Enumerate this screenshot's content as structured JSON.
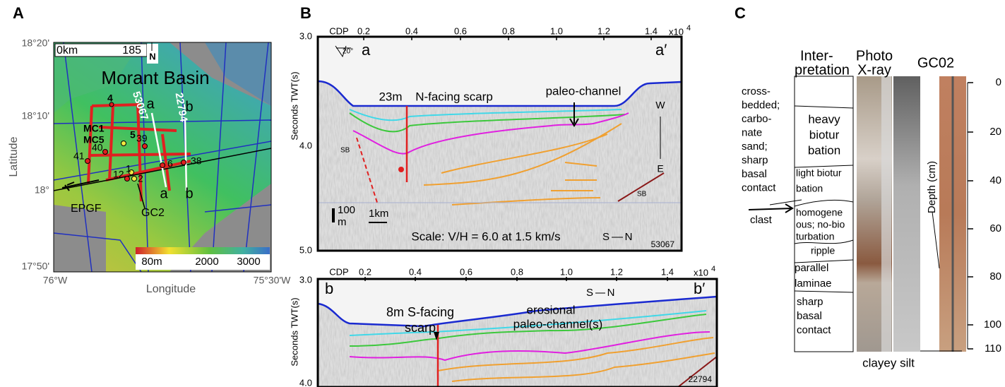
{
  "panel_a": {
    "label": "A",
    "title": "Morant Basin",
    "lat_ticks": [
      "18°20'",
      "18°10'",
      "18°",
      "17°50'"
    ],
    "lon_ticks": [
      "76°W",
      "75°30'W"
    ],
    "y_label": "Latitude",
    "x_label": "Longitude",
    "scale_bar": [
      "0km",
      "185"
    ],
    "north": "N",
    "lines": [
      "53067",
      "22794"
    ],
    "line_ends": [
      "a",
      "b",
      "a",
      "b"
    ],
    "sites": [
      "4",
      "MC1",
      "MC5",
      "5",
      "39",
      "40",
      "41",
      "12",
      "1",
      "2",
      "6",
      "38"
    ],
    "features": [
      "EPGF",
      "GC2"
    ],
    "colorbar": [
      "80m",
      "2000",
      "3000"
    ]
  },
  "panel_b": {
    "label": "B",
    "profiles": [
      {
        "cdp": "CDP",
        "x_ticks": [
          "0.2",
          "0.4",
          "0.6",
          "0.8",
          "1.0",
          "1.2",
          "1.4"
        ],
        "x_multiplier": "x10",
        "x_exponent": "4",
        "y_ticks": [
          "3.0",
          "4.0",
          "5.0"
        ],
        "y_label": "Seconds TWT(s)",
        "ends": [
          "a",
          "a′"
        ],
        "annotations": [
          "20°",
          "23m",
          "N-facing scarp",
          "paleo-channel",
          "W",
          "E",
          "SB",
          "SB",
          "100",
          "m",
          "1km",
          "Scale:  V/H = 6.0 at 1.5 km/s",
          "S",
          "N"
        ],
        "line_id": "53067"
      },
      {
        "cdp": "CDP",
        "x_ticks": [
          "0.2",
          "0.4",
          "0.6",
          "0.8",
          "1.0",
          "1.2",
          "1.4"
        ],
        "x_multiplier": "x10",
        "x_exponent": "4",
        "y_ticks": [
          "3.0",
          "4.0"
        ],
        "y_label": "Seconds TWT(s)",
        "ends": [
          "b",
          "b′"
        ],
        "annotations": [
          "S",
          "N",
          "8m S-facing",
          "scarp",
          "erosional",
          "paleo-channel(s)"
        ],
        "line_id": "22794"
      }
    ]
  },
  "panel_c": {
    "label": "C",
    "column_titles": [
      [
        "Inter-",
        "pretation"
      ],
      [
        "Photo",
        "X-ray"
      ],
      [
        "GC02"
      ]
    ],
    "depth_ticks": [
      "0",
      "20",
      "40",
      "60",
      "80",
      "100",
      "110"
    ],
    "depth_label": "Depth (cm)",
    "units": [
      [
        "heavy",
        "biotur",
        "bation"
      ],
      [
        "light biotur",
        "bation"
      ],
      [
        "homogene",
        "ous; no-bio",
        "turbation"
      ],
      [
        "ripple"
      ],
      [
        "parallel",
        "laminae"
      ],
      [
        "sharp",
        "basal",
        "contact"
      ]
    ],
    "side_note": [
      "cross-",
      "bedded;",
      "carbo-",
      "nate",
      "sand;",
      "sharp",
      "basal",
      "contact"
    ],
    "clast": "clast",
    "bottom": "clayey silt"
  }
}
